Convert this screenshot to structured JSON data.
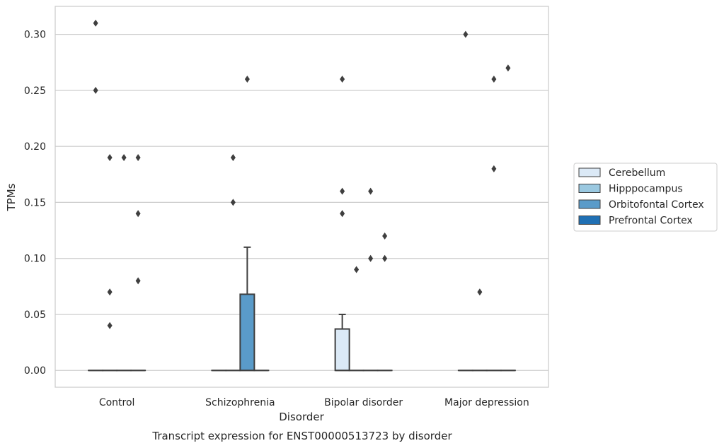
{
  "chart_data": {
    "type": "box",
    "caption": "Transcript expression for ENST00000513723 by disorder",
    "xlabel": "Disorder",
    "ylabel": "TPMs",
    "ylim": [
      -0.015,
      0.325
    ],
    "yticks": [
      0.0,
      0.05,
      0.1,
      0.15,
      0.2,
      0.25,
      0.3
    ],
    "ytick_labels": [
      "0.00",
      "0.05",
      "0.10",
      "0.15",
      "0.20",
      "0.25",
      "0.30"
    ],
    "grid": true,
    "legend_position": "right",
    "categories": [
      "Control",
      "Schizophrenia",
      "Bipolar disorder",
      "Major depression"
    ],
    "series": [
      {
        "name": "Cerebellum",
        "color": "#dbe9f6",
        "boxes": [
          {
            "q1": 0,
            "median": 0,
            "q3": 0,
            "whisker_low": 0,
            "whisker_high": 0,
            "outliers": [
              0.25,
              0.31
            ]
          },
          {
            "q1": 0,
            "median": 0,
            "q3": 0,
            "whisker_low": 0,
            "whisker_high": 0,
            "outliers": []
          },
          {
            "q1": 0,
            "median": 0,
            "q3": 0.037,
            "whisker_low": 0,
            "whisker_high": 0.05,
            "outliers": [
              0.14,
              0.16,
              0.26
            ]
          },
          {
            "q1": 0,
            "median": 0,
            "q3": 0,
            "whisker_low": 0,
            "whisker_high": 0,
            "outliers": [
              0.3
            ]
          }
        ]
      },
      {
        "name": "Hipppocampus",
        "color": "#9ac8e0",
        "boxes": [
          {
            "q1": 0,
            "median": 0,
            "q3": 0,
            "whisker_low": 0,
            "whisker_high": 0,
            "outliers": [
              0.04,
              0.07,
              0.19
            ]
          },
          {
            "q1": 0,
            "median": 0,
            "q3": 0,
            "whisker_low": 0,
            "whisker_high": 0,
            "outliers": [
              0.15,
              0.19
            ]
          },
          {
            "q1": 0,
            "median": 0,
            "q3": 0,
            "whisker_low": 0,
            "whisker_high": 0,
            "outliers": [
              0.09
            ]
          },
          {
            "q1": 0,
            "median": 0,
            "q3": 0,
            "whisker_low": 0,
            "whisker_high": 0,
            "outliers": [
              0.07
            ]
          }
        ]
      },
      {
        "name": "Orbitofontal Cortex",
        "color": "#5a9bc9",
        "boxes": [
          {
            "q1": 0,
            "median": 0,
            "q3": 0,
            "whisker_low": 0,
            "whisker_high": 0,
            "outliers": [
              0.19
            ]
          },
          {
            "q1": 0,
            "median": 0,
            "q3": 0.068,
            "whisker_low": 0,
            "whisker_high": 0.11,
            "outliers": [
              0.26
            ]
          },
          {
            "q1": 0,
            "median": 0,
            "q3": 0,
            "whisker_low": 0,
            "whisker_high": 0,
            "outliers": [
              0.1,
              0.16
            ]
          },
          {
            "q1": 0,
            "median": 0,
            "q3": 0,
            "whisker_low": 0,
            "whisker_high": 0,
            "outliers": [
              0.18,
              0.26
            ]
          }
        ]
      },
      {
        "name": "Prefrontal Cortex",
        "color": "#2070b4",
        "boxes": [
          {
            "q1": 0,
            "median": 0,
            "q3": 0,
            "whisker_low": 0,
            "whisker_high": 0,
            "outliers": [
              0.08,
              0.14,
              0.19
            ]
          },
          {
            "q1": 0,
            "median": 0,
            "q3": 0,
            "whisker_low": 0,
            "whisker_high": 0,
            "outliers": []
          },
          {
            "q1": 0,
            "median": 0,
            "q3": 0,
            "whisker_low": 0,
            "whisker_high": 0,
            "outliers": [
              0.1,
              0.12
            ]
          },
          {
            "q1": 0,
            "median": 0,
            "q3": 0,
            "whisker_low": 0,
            "whisker_high": 0,
            "outliers": [
              0.27
            ]
          }
        ]
      }
    ]
  }
}
